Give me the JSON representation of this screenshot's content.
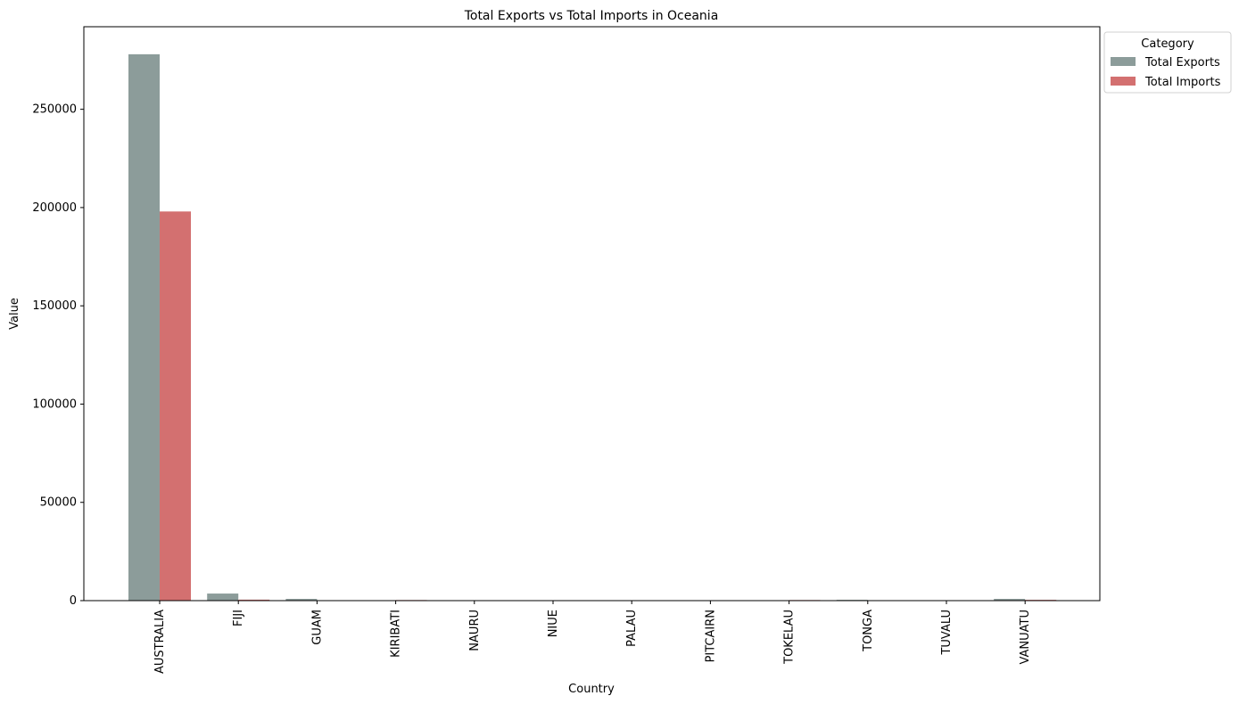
{
  "chart_data": {
    "type": "bar",
    "title": "Total Exports vs Total Imports in Oceania",
    "xlabel": "Country",
    "ylabel": "Value",
    "ylim": [
      0,
      292000
    ],
    "yticks": [
      0,
      50000,
      100000,
      150000,
      200000,
      250000
    ],
    "categories": [
      "AUSTRALIA",
      "FIJI",
      "GUAM",
      "KIRIBATI",
      "NAURU",
      "NIUE",
      "PALAU",
      "PITCAIRN",
      "TOKELAU",
      "TONGA",
      "TUVALU",
      "VANUATU"
    ],
    "series": [
      {
        "name": "Total Exports",
        "color": "#8c9c9a",
        "values": [
          278000,
          3600,
          900,
          200,
          30,
          10,
          20,
          5,
          40,
          400,
          5,
          900
        ]
      },
      {
        "name": "Total Imports",
        "color": "#d37070",
        "values": [
          198000,
          500,
          60,
          300,
          10,
          5,
          10,
          5,
          300,
          60,
          5,
          400
        ]
      }
    ],
    "legend": {
      "title": "Category",
      "position": "outside-top-right"
    },
    "grid": false
  }
}
